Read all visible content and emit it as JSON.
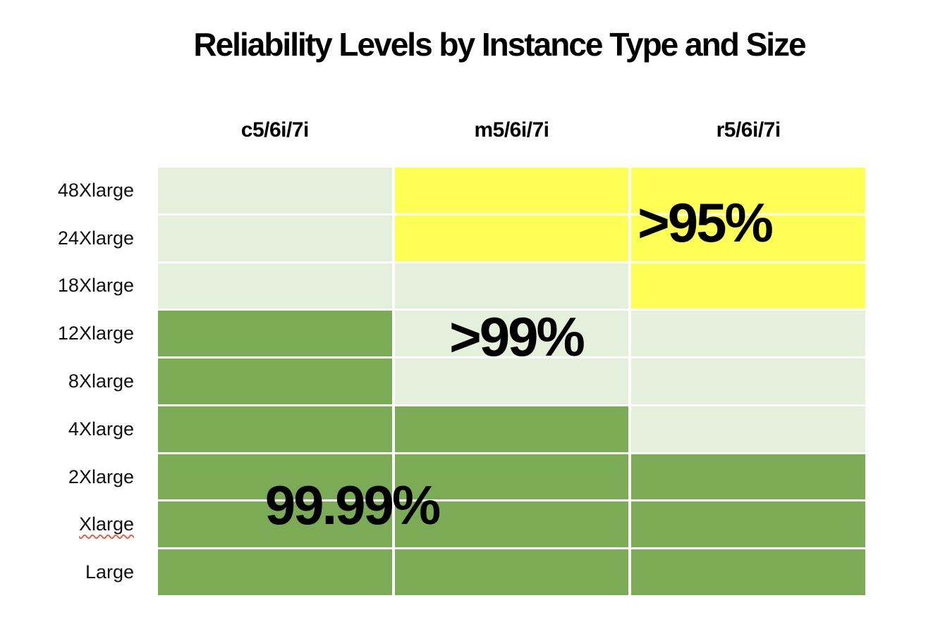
{
  "chart_data": {
    "type": "heatmap",
    "title": "Reliability Levels by Instance Type and Size",
    "columns": [
      "c5/6i/7i",
      "m5/6i/7i",
      "r5/6i/7i"
    ],
    "rows": [
      "48Xlarge",
      "24Xlarge",
      "18Xlarge",
      "12Xlarge",
      "8Xlarge",
      "4Xlarge",
      "2Xlarge",
      "Xlarge",
      "Large"
    ],
    "level_colors": {
      ">95%": "#fdff55",
      ">99%": "#e4efdc",
      "99.99%": "#7cab55"
    },
    "cells": [
      [
        ">99%",
        ">95%",
        ">95%"
      ],
      [
        ">99%",
        ">95%",
        ">95%"
      ],
      [
        ">99%",
        ">99%",
        ">95%"
      ],
      [
        "99.99%",
        ">99%",
        ">99%"
      ],
      [
        "99.99%",
        ">99%",
        ">99%"
      ],
      [
        "99.99%",
        "99.99%",
        ">99%"
      ],
      [
        "99.99%",
        "99.99%",
        "99.99%"
      ],
      [
        "99.99%",
        "99.99%",
        "99.99%"
      ],
      [
        "99.99%",
        "99.99%",
        "99.99%"
      ]
    ],
    "overlay_labels": [
      {
        "text": ">95%",
        "anchor": "r5/6i/7i column, spanning 48Xlarge-24Xlarge rows"
      },
      {
        "text": ">99%",
        "anchor": "m5/6i/7i column, 12Xlarge row"
      },
      {
        "text": "99.99%",
        "anchor": "c5/6i/7i column, spanning 2Xlarge-Xlarge rows"
      }
    ],
    "spellcheck_underlined_row_label": "Xlarge",
    "gridline_color": "#ffffff",
    "text_color": "#000000",
    "legend_position": "none",
    "grid": "white gridlines between cells"
  }
}
